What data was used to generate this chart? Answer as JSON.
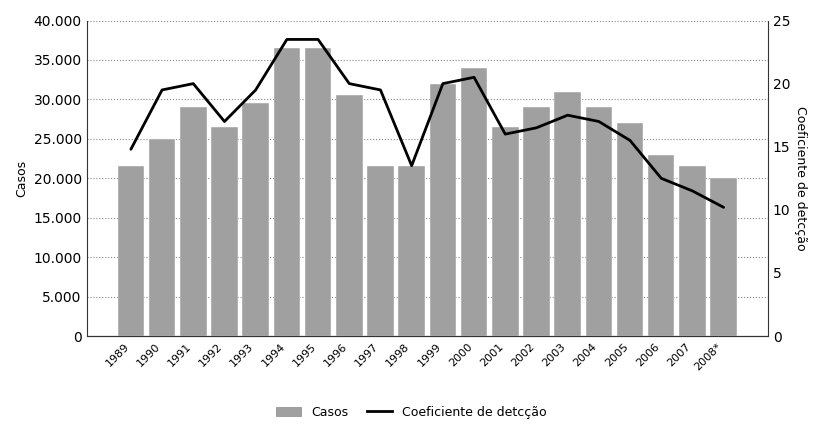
{
  "years": [
    "1989",
    "1990",
    "1991",
    "1992",
    "1993",
    "1994",
    "1995",
    "1996",
    "1997",
    "1998",
    "1999",
    "2000",
    "2001",
    "2002",
    "2003",
    "2004",
    "2005",
    "2006",
    "2007",
    "2008*"
  ],
  "casos": [
    21500,
    25000,
    29000,
    26500,
    29500,
    36500,
    36500,
    30500,
    21500,
    21500,
    32000,
    34000,
    26500,
    29000,
    31000,
    29000,
    27000,
    23000,
    21500,
    20000
  ],
  "coef": [
    14.8,
    19.5,
    20.0,
    17.0,
    19.5,
    23.5,
    23.5,
    20.0,
    19.5,
    13.5,
    20.0,
    20.5,
    16.0,
    16.5,
    17.5,
    17.0,
    15.5,
    12.5,
    11.5,
    10.2
  ],
  "bar_color": "#a0a0a0",
  "line_color": "#000000",
  "ylabel_left": "Casos",
  "ylabel_right": "Coeficiente de detcção",
  "ylim_left": [
    0,
    40000
  ],
  "ylim_right": [
    0,
    25
  ],
  "yticks_left": [
    0,
    5000,
    10000,
    15000,
    20000,
    25000,
    30000,
    35000,
    40000
  ],
  "yticks_right": [
    0,
    5,
    10,
    15,
    20,
    25
  ],
  "legend_casos": "Casos",
  "legend_coef": "Coeficiente de detcção",
  "fig_width": 8.22,
  "fig_height": 4.3,
  "dpi": 100
}
